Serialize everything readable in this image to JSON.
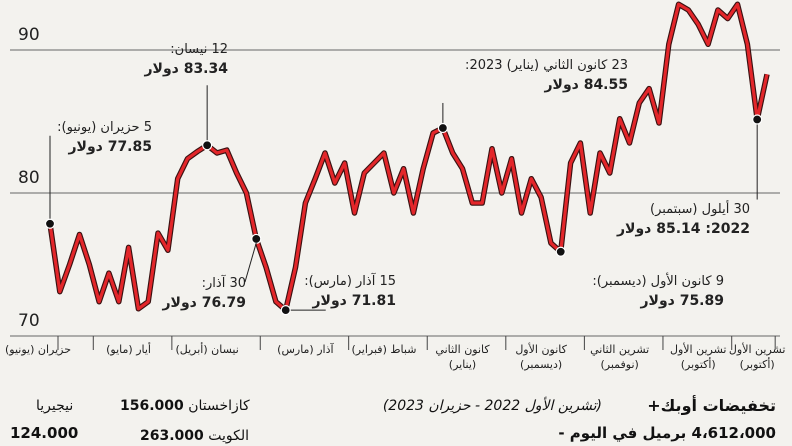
{
  "chart_data": {
    "type": "line",
    "categories": [
      "حزيران (يونيو)",
      null,
      null,
      null,
      null,
      null,
      null,
      null,
      "أيار (مايو)",
      null,
      null,
      null,
      null,
      null,
      null,
      null,
      "نيسان (أبريل)",
      null,
      null,
      null,
      null,
      null,
      null,
      null,
      null,
      null,
      "آذار (مارس)",
      null,
      null,
      null,
      null,
      null,
      null,
      null,
      "شباط (فبراير)",
      null,
      null,
      null,
      null,
      null,
      null,
      null,
      "كانون الثاني (يناير)",
      null,
      null,
      null,
      null,
      null,
      null,
      null,
      "كانون الأول (ديسمبر)",
      null,
      null,
      null,
      null,
      null,
      null,
      null,
      "تشرين الثاني (نوفمبر)",
      null,
      null,
      null,
      null,
      null,
      null,
      null,
      "تشرين الأول (أكتوبر)",
      null,
      null,
      null,
      null,
      null,
      "تشرين الأول (أكتوبر)",
      null
    ],
    "series": [
      {
        "color": "#e3262a",
        "values": [
          77.85,
          73.1,
          75.0,
          77.1,
          75.0,
          72.4,
          74.4,
          72.4,
          76.2,
          71.9,
          72.4,
          77.2,
          76.0,
          81.0,
          82.4,
          82.9,
          83.34,
          82.8,
          83.0,
          81.4,
          80.0,
          76.79,
          74.8,
          72.4,
          71.81,
          74.8,
          79.3,
          81.0,
          82.8,
          80.7,
          82.1,
          78.6,
          81.4,
          82.1,
          82.8,
          80.0,
          81.7,
          78.6,
          81.7,
          84.2,
          84.55,
          82.8,
          81.7,
          79.3,
          79.3,
          83.1,
          80.0,
          82.4,
          78.6,
          81.0,
          79.7,
          76.5,
          75.89,
          82.1,
          83.5,
          78.6,
          82.8,
          81.4,
          85.2,
          83.5,
          86.3,
          87.3,
          84.9,
          90.4,
          93.2,
          92.8,
          91.8,
          90.4,
          92.8,
          92.2,
          93.2,
          90.4,
          85.14,
          88.3
        ]
      }
    ],
    "ylim": [
      70,
      93.5
    ],
    "yticks": [
      70,
      80,
      90
    ],
    "grid": true,
    "annotations": [
      {
        "date": "5 حزيران (يونيو):",
        "price": "77.85 دولار"
      },
      {
        "date": "12 نيسان:",
        "price": "83.34 دولار"
      },
      {
        "date": "30 آذار:",
        "price": "76.79 دولار"
      },
      {
        "date": "15 آذار (مارس):",
        "price": "71.81 دولار"
      },
      {
        "date": "23 كانون الثاني (يناير) 2023:",
        "price": "84.55 دولار"
      },
      {
        "date": "9 كانون الأول (ديسمبر):",
        "price": "75.89 دولار"
      },
      {
        "date": "30 أيلول (سبتمبر)",
        "price": "2022: 85.14 دولار"
      }
    ]
  },
  "opec_box": {
    "title": "تخفيضات أوبك+",
    "period": "(تشرين الأول 2022 - حزيران 2023)",
    "total": "4،612،000 برميل في اليوم -",
    "items": [
      {
        "name": "كازاخستان",
        "value": "156.000"
      },
      {
        "name": "نيجيريا",
        "value": "124.000"
      },
      {
        "name": "الكويت",
        "value": "263.000"
      }
    ]
  }
}
